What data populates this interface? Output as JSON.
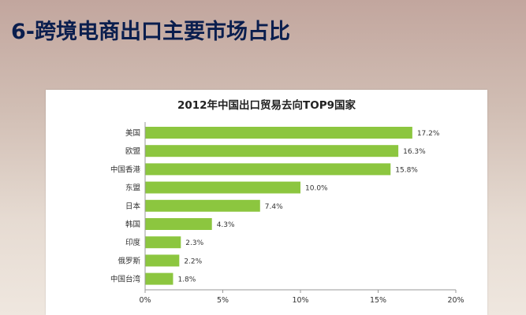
{
  "slide": {
    "title": "6-跨境电商出口主要市场占比"
  },
  "chart_data": {
    "type": "bar",
    "orientation": "horizontal",
    "title": "2012年中国出口贸易去向TOP9国家",
    "categories": [
      "美国",
      "欧盟",
      "中国香港",
      "东盟",
      "日本",
      "韩国",
      "印度",
      "俄罗斯",
      "中国台湾"
    ],
    "values": [
      17.2,
      16.3,
      15.8,
      10.0,
      7.4,
      4.3,
      2.3,
      2.2,
      1.8
    ],
    "value_labels": [
      "17.2%",
      "16.3%",
      "15.8%",
      "10.0%",
      "7.4%",
      "4.3%",
      "2.3%",
      "2.2%",
      "1.8%"
    ],
    "xlim": [
      0,
      20
    ],
    "xticks": [
      0,
      5,
      10,
      15,
      20
    ],
    "xtick_labels": [
      "0%",
      "5%",
      "10%",
      "15%",
      "20%"
    ],
    "bar_color": "#8cc63f",
    "grid": false,
    "legend": "none"
  }
}
